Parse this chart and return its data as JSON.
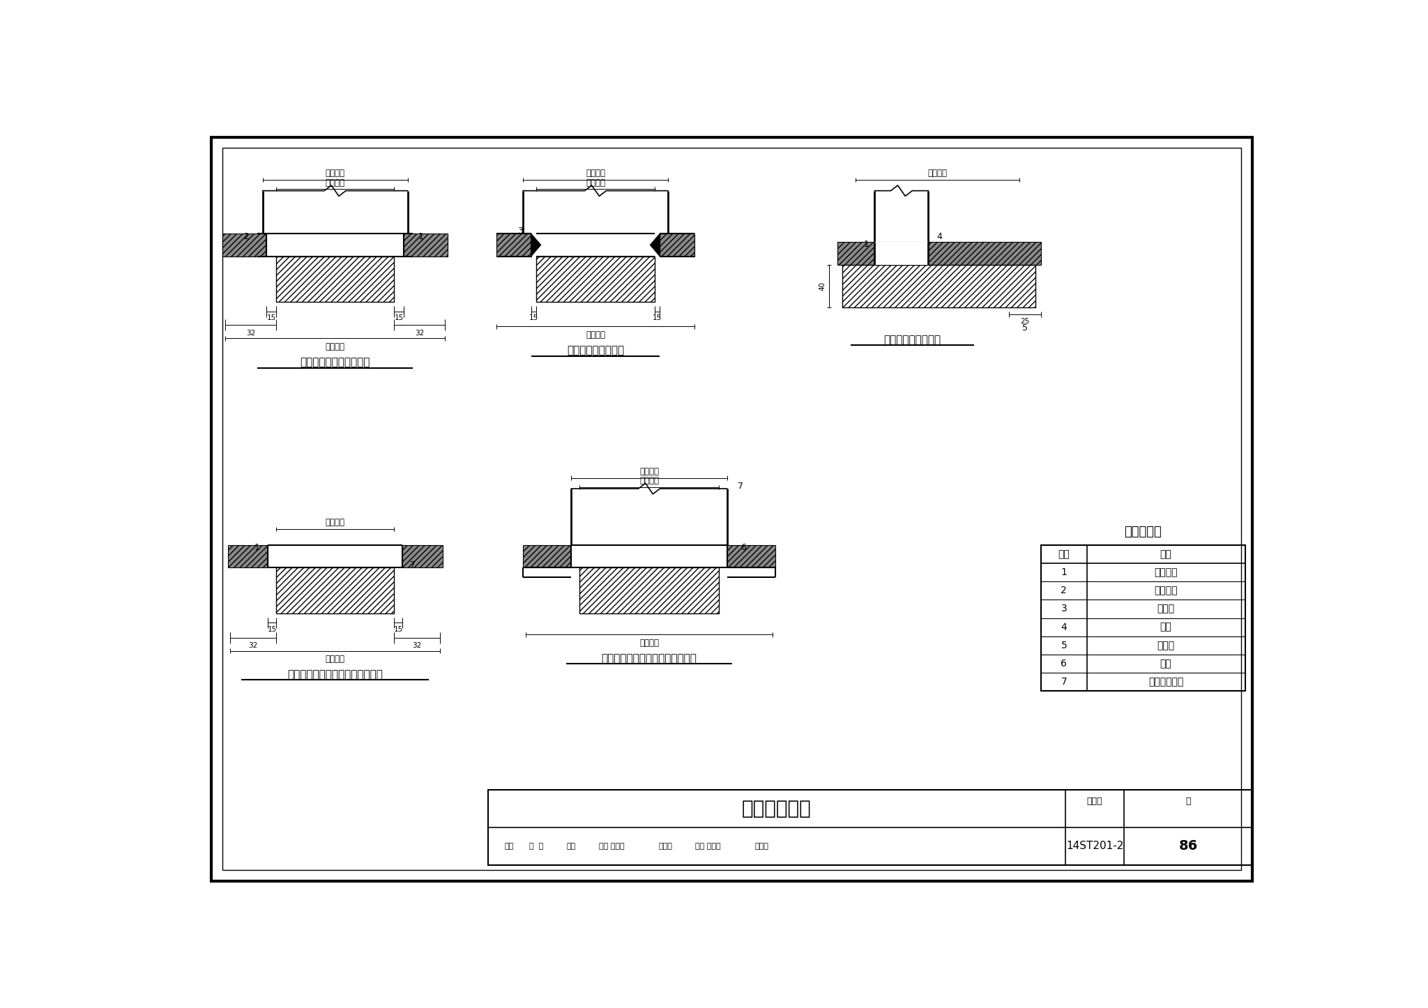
{
  "bg_color": "#ffffff",
  "title": "百叶风口安装",
  "fig_number": "14ST201-2",
  "page": "86",
  "diagram1_title": "百叶风口与风管插入安装",
  "diagram2_title": "百叶风口弹簧片安装",
  "diagram3_title": "固定斜百叶风口安装",
  "diagram4_title": "百叶风口硅酸盐板内框安装（一）",
  "diagram5_title": "百叶风口硅酸盐板内框安装（二）",
  "table_title": "名称对照表",
  "table_headers": [
    "编号",
    "名称"
  ],
  "table_data": [
    [
      "1",
      "自攻螺丝"
    ],
    [
      "2",
      "固定角钢"
    ],
    [
      "3",
      "弹簧片"
    ],
    [
      "4",
      "风管"
    ],
    [
      "5",
      "吊顶板"
    ],
    [
      "6",
      "龙骨"
    ],
    [
      "7",
      "硅酸盐板内框"
    ]
  ]
}
